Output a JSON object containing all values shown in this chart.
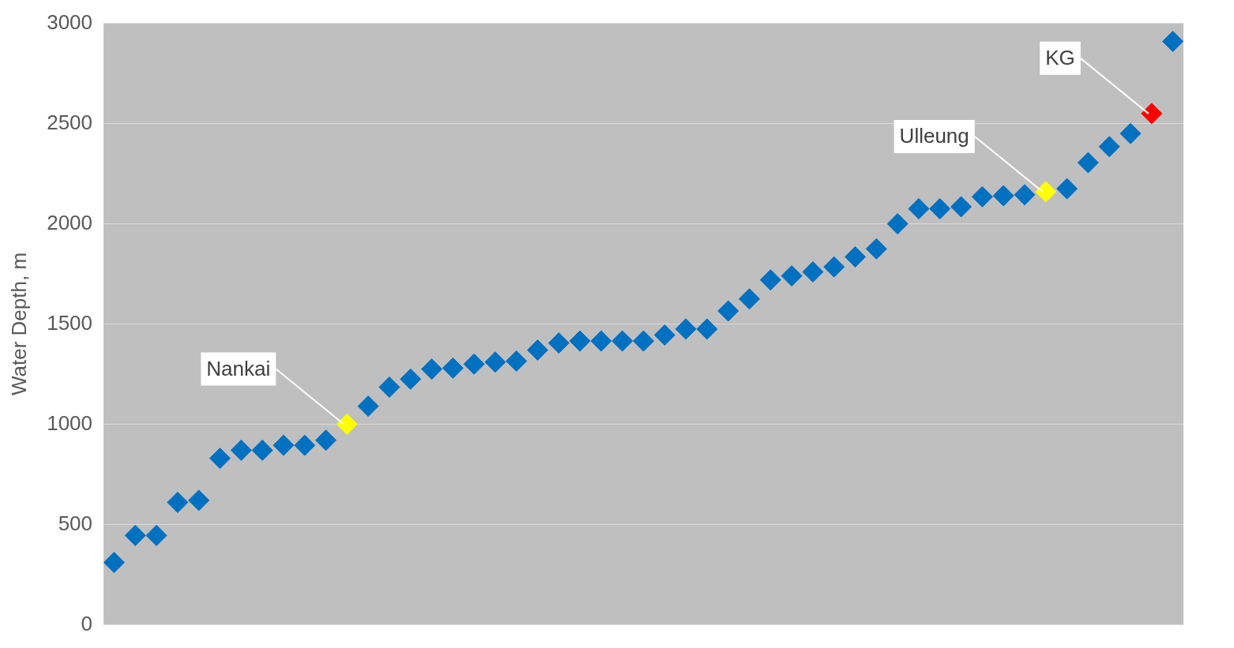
{
  "chart_data": {
    "type": "scatter",
    "ylabel": "Water Depth, m",
    "categories": [
      null,
      null,
      null,
      null,
      null,
      null,
      null,
      null,
      null,
      null,
      null,
      null,
      null,
      null,
      null,
      null,
      null,
      null,
      null,
      null,
      null,
      null,
      null,
      null,
      null,
      null,
      null,
      null,
      null,
      null,
      null,
      null,
      null,
      null,
      null,
      null,
      null,
      null,
      null,
      null,
      null,
      null,
      null,
      null,
      null,
      null,
      null,
      null,
      null,
      null,
      null
    ],
    "values": [
      310,
      445,
      445,
      610,
      620,
      830,
      870,
      870,
      895,
      895,
      920,
      1000,
      1090,
      1185,
      1225,
      1275,
      1280,
      1300,
      1310,
      1315,
      1370,
      1405,
      1415,
      1415,
      1415,
      1415,
      1445,
      1475,
      1475,
      1565,
      1625,
      1720,
      1740,
      1760,
      1785,
      1835,
      1875,
      2000,
      2075,
      2075,
      2085,
      2135,
      2140,
      2145,
      2160,
      2175,
      2305,
      2385,
      2450,
      2550,
      2910
    ],
    "colors": [
      "#0070c0",
      "#0070c0",
      "#0070c0",
      "#0070c0",
      "#0070c0",
      "#0070c0",
      "#0070c0",
      "#0070c0",
      "#0070c0",
      "#0070c0",
      "#0070c0",
      "#ffff00",
      "#0070c0",
      "#0070c0",
      "#0070c0",
      "#0070c0",
      "#0070c0",
      "#0070c0",
      "#0070c0",
      "#0070c0",
      "#0070c0",
      "#0070c0",
      "#0070c0",
      "#0070c0",
      "#0070c0",
      "#0070c0",
      "#0070c0",
      "#0070c0",
      "#0070c0",
      "#0070c0",
      "#0070c0",
      "#0070c0",
      "#0070c0",
      "#0070c0",
      "#0070c0",
      "#0070c0",
      "#0070c0",
      "#0070c0",
      "#0070c0",
      "#0070c0",
      "#0070c0",
      "#0070c0",
      "#0070c0",
      "#0070c0",
      "#ffff00",
      "#0070c0",
      "#0070c0",
      "#0070c0",
      "#0070c0",
      "#ff0000",
      "#0070c0"
    ],
    "ylim": [
      0,
      3000
    ],
    "yticks": [
      0,
      500,
      1000,
      1500,
      2000,
      2500,
      3000
    ],
    "grid": "y",
    "marker": "diamond",
    "tick_labels": "y",
    "annotations": [
      "Nankai",
      "Ulleung",
      "KG"
    ]
  }
}
